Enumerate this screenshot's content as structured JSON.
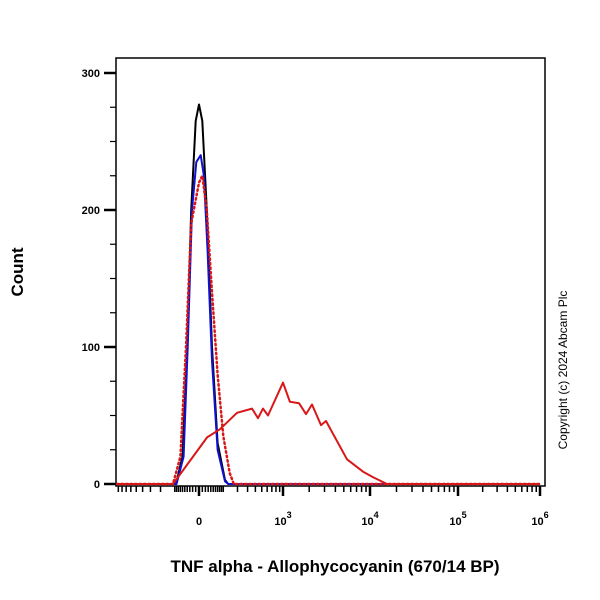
{
  "chart_data": {
    "type": "line",
    "title": "",
    "xlabel": "TNF alpha - Allophycocyanin (670/14 BP)",
    "ylabel": "Count",
    "x_scale": "biexponential",
    "xlim": [
      -1000,
      1000000
    ],
    "ylim": [
      0,
      300
    ],
    "grid": false,
    "legend": "none",
    "y_ticks": [
      {
        "value": 0,
        "label": "0"
      },
      {
        "value": 100,
        "label": "100"
      },
      {
        "value": 200,
        "label": "200"
      },
      {
        "value": 300,
        "label": "300"
      }
    ],
    "x_ticks": [
      {
        "value": 0,
        "base": "0",
        "exp": ""
      },
      {
        "value": 1000,
        "base": "10",
        "exp": "3"
      },
      {
        "value": 10000,
        "base": "10",
        "exp": "4"
      },
      {
        "value": 100000,
        "base": "10",
        "exp": "5"
      },
      {
        "value": 1000000,
        "base": "10",
        "exp": "6"
      }
    ],
    "series": [
      {
        "color": "#000000",
        "style": "solid",
        "x": [
          -1000,
          -93,
          -60,
          -40,
          -25,
          -10,
          0,
          10,
          25,
          45,
          70,
          110,
          130,
          1000000
        ],
        "y": [
          0,
          0,
          20,
          100,
          200,
          265,
          277,
          265,
          200,
          100,
          30,
          3,
          0,
          0
        ]
      },
      {
        "color": "#1010d0",
        "style": "solid",
        "x": [
          -1000,
          -90,
          -55,
          -38,
          -22,
          -8,
          5,
          15,
          28,
          45,
          70,
          110,
          130,
          1000000
        ],
        "y": [
          0,
          0,
          20,
          100,
          200,
          235,
          240,
          225,
          170,
          90,
          25,
          2,
          0,
          0
        ]
      },
      {
        "color": "#d81818",
        "style": "dotted",
        "x": [
          -1000,
          -110,
          -70,
          -45,
          -25,
          0,
          10,
          25,
          45,
          70,
          100,
          140,
          170,
          1000000
        ],
        "y": [
          0,
          0,
          20,
          100,
          190,
          220,
          225,
          200,
          140,
          80,
          35,
          8,
          0,
          0
        ]
      },
      {
        "color": "#d81818",
        "style": "solid",
        "x": [
          -1000,
          -110,
          26,
          82,
          196,
          354,
          439,
          521,
          617,
          1000,
          1200,
          1528,
          1838,
          2153,
          2735,
          3120,
          5440,
          8320,
          10800,
          15600,
          1000000
        ],
        "y": [
          0,
          0,
          34,
          40,
          52,
          55,
          48,
          55,
          50,
          74,
          60,
          59,
          51,
          58,
          43,
          46,
          18,
          9,
          5,
          0,
          0
        ]
      }
    ]
  },
  "copyright": "Copyright (c) 2024 Abcam Plc"
}
